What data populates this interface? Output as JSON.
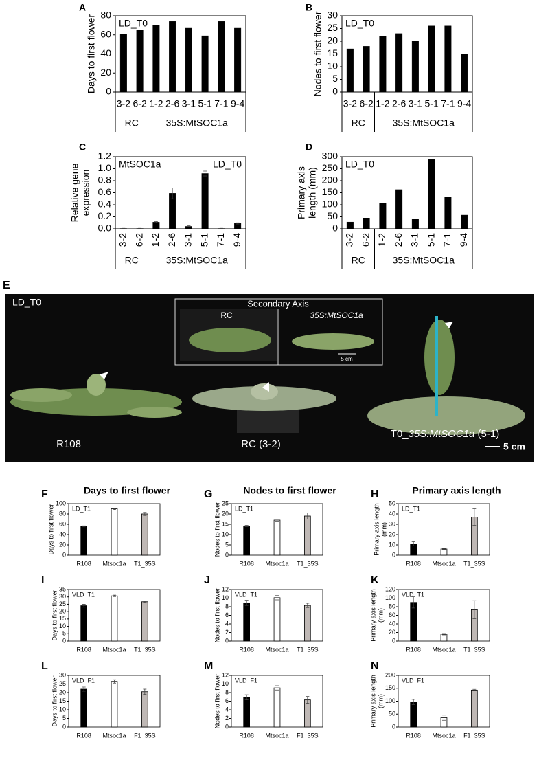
{
  "chart_data": [
    {
      "panel": "A",
      "type": "bar",
      "ylabel": [
        "Days to first flower"
      ],
      "annotations": [
        "LD_T0"
      ],
      "categories": [
        "3-2",
        "6-2",
        "1-2",
        "2-6",
        "3-1",
        "5-1",
        "7-1",
        "9-4"
      ],
      "values": [
        61,
        65,
        70,
        74,
        67,
        59,
        74,
        67
      ],
      "color": "#000000",
      "groups": [
        {
          "label": "RC",
          "span": 2
        },
        {
          "label": "35S:MtSOC1a",
          "span": 6
        }
      ],
      "ylim": [
        0,
        80
      ],
      "yticks": [
        0,
        20,
        40,
        60,
        80
      ]
    },
    {
      "panel": "B",
      "type": "bar",
      "ylabel": [
        "Nodes to first flower"
      ],
      "annotations": [
        "LD_T0"
      ],
      "categories": [
        "3-2",
        "6-2",
        "1-2",
        "2-6",
        "3-1",
        "5-1",
        "7-1",
        "9-4"
      ],
      "values": [
        17,
        18,
        22,
        23,
        20,
        26,
        26,
        15
      ],
      "color": "#000000",
      "groups": [
        {
          "label": "RC",
          "span": 2
        },
        {
          "label": "35S:MtSOC1a",
          "span": 6
        }
      ],
      "ylim": [
        0,
        30
      ],
      "yticks": [
        0,
        5,
        10,
        15,
        20,
        25,
        30
      ]
    },
    {
      "panel": "C",
      "type": "bar",
      "ylabel": [
        "Relative gene",
        "expression"
      ],
      "annotations": [
        "MtSOC1a",
        "LD_T0"
      ],
      "categories": [
        "3-2",
        "6-2",
        "1-2",
        "2-6",
        "3-1",
        "5-1",
        "7-1",
        "9-4"
      ],
      "values": [
        0.005,
        0.005,
        0.11,
        0.59,
        0.04,
        0.92,
        0.005,
        0.09
      ],
      "errors": [
        0.003,
        0.003,
        0.01,
        0.09,
        0.01,
        0.04,
        0.003,
        0.01
      ],
      "color": "#000000",
      "groups": [
        {
          "label": "RC",
          "span": 2
        },
        {
          "label": "35S:MtSOC1a",
          "span": 6
        }
      ],
      "rotate_labels": true,
      "ylim": [
        0,
        1.2
      ],
      "yticks": [
        {
          "value": 0,
          "label": "0.0"
        },
        0.2,
        0.4,
        0.6,
        0.8,
        {
          "value": 1,
          "label": "1.0"
        },
        1.2
      ]
    },
    {
      "panel": "D",
      "type": "bar",
      "ylabel": [
        "Primary axis",
        "length (mm)"
      ],
      "annotations": [
        "LD_T0"
      ],
      "categories": [
        "3-2",
        "6-2",
        "1-2",
        "2-6",
        "3-1",
        "5-1",
        "7-1",
        "9-4"
      ],
      "values": [
        28,
        45,
        107,
        163,
        42,
        288,
        132,
        57
      ],
      "color": "#000000",
      "groups": [
        {
          "label": "RC",
          "span": 2
        },
        {
          "label": "35S:MtSOC1a",
          "span": 6
        }
      ],
      "rotate_labels": true,
      "ylim": [
        0,
        300
      ],
      "yticks": [
        0,
        50,
        100,
        150,
        200,
        250,
        300
      ]
    },
    {
      "panel": "F",
      "type": "bar",
      "ylabel": [
        "Days to first flower"
      ],
      "annotations": [
        "LD_T1"
      ],
      "categories": [
        "R108",
        "Mtsoc1a",
        "T1_35S"
      ],
      "values": [
        56,
        90,
        80
      ],
      "errors": [
        1,
        1.5,
        3
      ],
      "colors": [
        "#000000",
        "#ffffff",
        "#bfb8b5"
      ],
      "ylim": [
        0,
        100
      ],
      "yticks": [
        0,
        20,
        40,
        60,
        80,
        100
      ]
    },
    {
      "panel": "G",
      "type": "bar",
      "ylabel": [
        "Nodes to first flower"
      ],
      "annotations": [
        "LD_T1"
      ],
      "categories": [
        "R108",
        "Mtsoc1a",
        "T1_35S"
      ],
      "values": [
        14.2,
        17,
        19
      ],
      "errors": [
        0.3,
        0.5,
        1.5
      ],
      "colors": [
        "#000000",
        "#ffffff",
        "#bfb8b5"
      ],
      "ylim": [
        0,
        25
      ],
      "yticks": [
        0,
        5,
        10,
        15,
        20,
        25
      ]
    },
    {
      "panel": "H",
      "type": "bar",
      "ylabel": [
        "Primary axis length",
        "(mm)"
      ],
      "annotations": [
        "LD_T1"
      ],
      "categories": [
        "R108",
        "Mtsoc1a",
        "T1_35S"
      ],
      "values": [
        11,
        6,
        37
      ],
      "errors": [
        2,
        0.5,
        8
      ],
      "colors": [
        "#000000",
        "#ffffff",
        "#bfb8b5"
      ],
      "ylim": [
        0,
        50
      ],
      "yticks": [
        0,
        10,
        20,
        30,
        40,
        50
      ]
    },
    {
      "panel": "I",
      "type": "bar",
      "ylabel": [
        "Days to first flower"
      ],
      "annotations": [
        "VLD_T1"
      ],
      "categories": [
        "R108",
        "Mtsoc1a",
        "T1_35S"
      ],
      "values": [
        24,
        30.7,
        26.7
      ],
      "errors": [
        1,
        0.5,
        0.5
      ],
      "colors": [
        "#000000",
        "#ffffff",
        "#bfb8b5"
      ],
      "ylim": [
        0,
        35
      ],
      "yticks": [
        0,
        5,
        10,
        15,
        20,
        25,
        30,
        35
      ]
    },
    {
      "panel": "J",
      "type": "bar",
      "ylabel": [
        "Nodes to first flower"
      ],
      "annotations": [
        "VLD_T1"
      ],
      "categories": [
        "R108",
        "Mtsoc1a",
        "T1_35S"
      ],
      "values": [
        8.9,
        10.1,
        8.3
      ],
      "errors": [
        0.6,
        0.5,
        0.5
      ],
      "colors": [
        "#000000",
        "#ffffff",
        "#bfb8b5"
      ],
      "ylim": [
        0,
        12
      ],
      "yticks": [
        0,
        2,
        4,
        6,
        8,
        10,
        12
      ]
    },
    {
      "panel": "K",
      "type": "bar",
      "ylabel": [
        "Primary axis length",
        "(mm)"
      ],
      "annotations": [
        "VLD_T1"
      ],
      "categories": [
        "R108",
        "Mtsoc1a",
        "T1_35S"
      ],
      "values": [
        90,
        16,
        73
      ],
      "errors": [
        13,
        1.5,
        21
      ],
      "colors": [
        "#000000",
        "#ffffff",
        "#bfb8b5"
      ],
      "ylim": [
        0,
        120
      ],
      "yticks": [
        0,
        20,
        40,
        60,
        80,
        100,
        120
      ]
    },
    {
      "panel": "L",
      "type": "bar",
      "ylabel": [
        "Days to first flower"
      ],
      "annotations": [
        "VLD_F1"
      ],
      "categories": [
        "R108",
        "Mtsoc1a",
        "F1_35S"
      ],
      "values": [
        22,
        26.5,
        20.5
      ],
      "errors": [
        1.2,
        1,
        1.5
      ],
      "colors": [
        "#000000",
        "#ffffff",
        "#bfb8b5"
      ],
      "ylim": [
        0,
        30
      ],
      "yticks": [
        0,
        5,
        10,
        15,
        20,
        25,
        30
      ]
    },
    {
      "panel": "M",
      "type": "bar",
      "ylabel": [
        "Nodes to first flower"
      ],
      "annotations": [
        "VLD_F1"
      ],
      "categories": [
        "R108",
        "Mtsoc1a",
        "F1_35S"
      ],
      "values": [
        6.9,
        9.1,
        6.3
      ],
      "errors": [
        0.6,
        0.5,
        0.8
      ],
      "colors": [
        "#000000",
        "#ffffff",
        "#bfb8b5"
      ],
      "ylim": [
        0,
        12
      ],
      "yticks": [
        0,
        2,
        4,
        6,
        8,
        10,
        12
      ]
    },
    {
      "panel": "N",
      "type": "bar",
      "ylabel": [
        "Primary axis length",
        "(mm)"
      ],
      "annotations": [
        "VLD_F1"
      ],
      "categories": [
        "R108",
        "Mtsoc1a",
        "F1_35S"
      ],
      "values": [
        97,
        36,
        143
      ],
      "errors": [
        10,
        10,
        3
      ],
      "colors": [
        "#000000",
        "#ffffff",
        "#bfb8b5"
      ],
      "ylim": [
        0,
        200
      ],
      "yticks": [
        0,
        50,
        100,
        150,
        200
      ]
    }
  ],
  "photo": {
    "panel": "E",
    "label": "LD_T0",
    "inset": {
      "title": "Secondary Axis",
      "left": "RC",
      "right": "35S:MtSOC1a",
      "scale": "5 cm"
    },
    "plants": [
      "R108",
      "RC (3-2)"
    ],
    "plant3": {
      "prefix": "T0_",
      "italic": "35S:MtSOC1a",
      "suffix": " (5-1)"
    },
    "scale": "5 cm"
  },
  "column_titles": [
    "Days to first flower",
    "Nodes to first flower",
    "Primary axis length"
  ]
}
